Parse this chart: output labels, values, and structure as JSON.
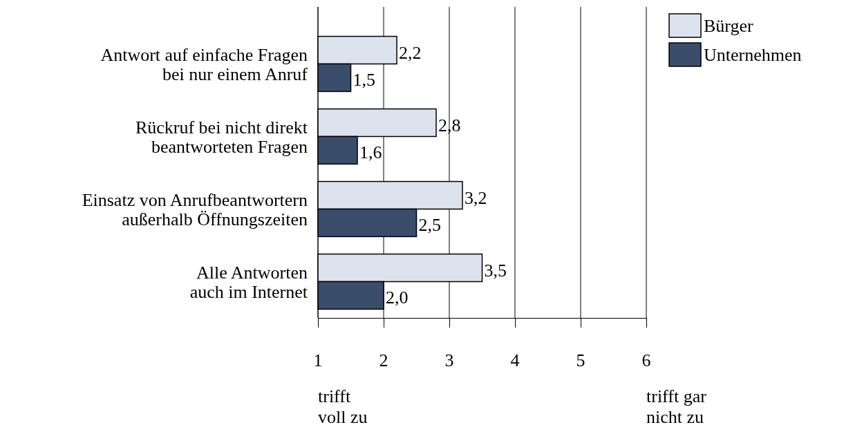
{
  "chart_data": {
    "type": "bar",
    "orientation": "horizontal",
    "categories": [
      "Antwort auf einfache Fragen\nbei nur einem Anruf",
      "Rückruf bei nicht direkt\nbeantworteten Fragen",
      "Einsatz von Anrufbeantwortern\naußerhalb Öffnungszeiten",
      "Alle Antworten\nauch im Internet"
    ],
    "series": [
      {
        "name": "Bürger",
        "color": "#dde3ee",
        "values": [
          2.2,
          2.8,
          3.2,
          3.5
        ],
        "value_labels": [
          "2,2",
          "2,8",
          "3,2",
          "3,5"
        ]
      },
      {
        "name": "Unternehmen",
        "color": "#3a4d6b",
        "values": [
          1.5,
          1.6,
          2.5,
          2.0
        ],
        "value_labels": [
          "1,5",
          "1,6",
          "2,5",
          "2,0"
        ]
      }
    ],
    "xlim": [
      1,
      6
    ],
    "xticks": [
      1,
      2,
      3,
      4,
      5,
      6
    ],
    "grid": "x",
    "legend": "top right",
    "annotations": [
      "trifft\nvoll zu",
      "trifft gar\nnicht zu"
    ]
  }
}
